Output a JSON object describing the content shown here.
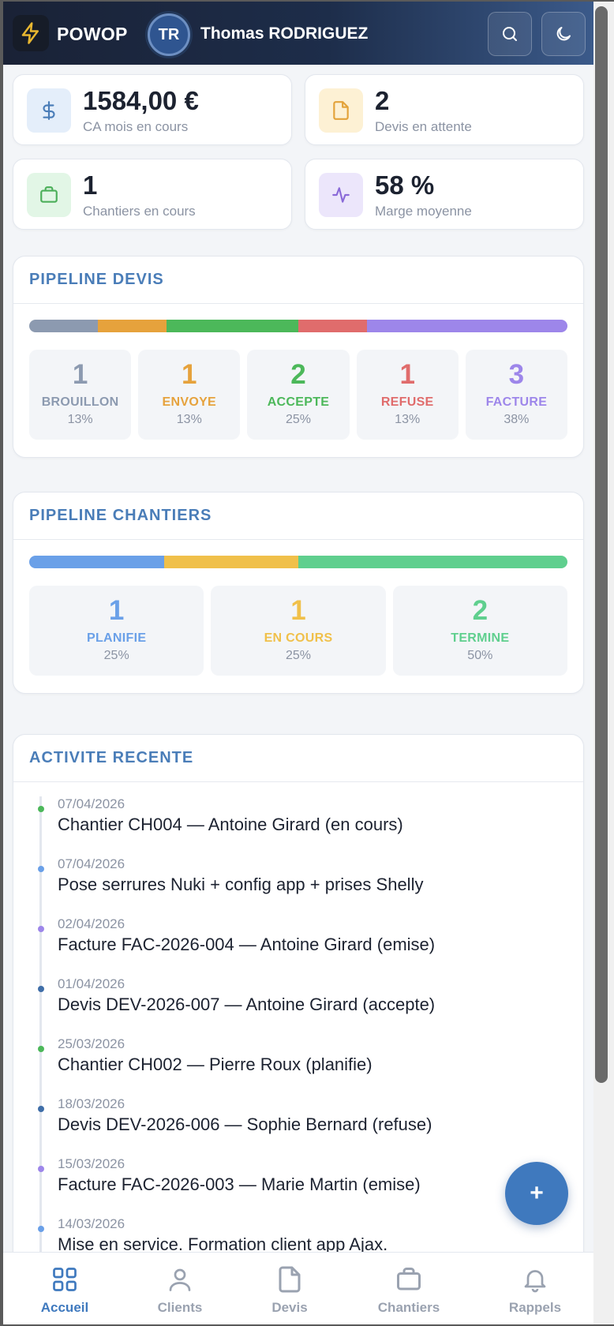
{
  "header": {
    "brand": "POWOP",
    "avatar_initials": "TR",
    "user_name": "Thomas RODRIGUEZ"
  },
  "stats": [
    {
      "value": "1584,00 €",
      "label": "CA mois en cours",
      "icon": "dollar-icon",
      "bg": "#e4eefa",
      "fg": "#4a7db8"
    },
    {
      "value": "2",
      "label": "Devis en attente",
      "icon": "document-icon",
      "bg": "#fdf1d4",
      "fg": "#e3a33a"
    },
    {
      "value": "1",
      "label": "Chantiers en cours",
      "icon": "briefcase-icon",
      "bg": "#e2f6e6",
      "fg": "#4caf5a"
    },
    {
      "value": "58 %",
      "label": "Marge moyenne",
      "icon": "activity-icon",
      "bg": "#ece6fb",
      "fg": "#8a6ad8"
    }
  ],
  "pipeline_devis": {
    "title": "PIPELINE DEVIS",
    "items": [
      {
        "count": "1",
        "label": "BROUILLON",
        "pct": "13%",
        "share": 13,
        "color": "#8c9ab0"
      },
      {
        "count": "1",
        "label": "ENVOYE",
        "pct": "13%",
        "share": 13,
        "color": "#e6a23c"
      },
      {
        "count": "2",
        "label": "ACCEPTE",
        "pct": "25%",
        "share": 25,
        "color": "#4cb85a"
      },
      {
        "count": "1",
        "label": "REFUSE",
        "pct": "13%",
        "share": 13,
        "color": "#e06c6c"
      },
      {
        "count": "3",
        "label": "FACTURE",
        "pct": "38%",
        "share": 38,
        "color": "#9d86ea"
      }
    ]
  },
  "pipeline_chantiers": {
    "title": "PIPELINE CHANTIERS",
    "items": [
      {
        "count": "1",
        "label": "PLANIFIE",
        "pct": "25%",
        "share": 25,
        "color": "#6aa0e8"
      },
      {
        "count": "1",
        "label": "EN COURS",
        "pct": "25%",
        "share": 25,
        "color": "#f0c04a"
      },
      {
        "count": "2",
        "label": "TERMINE",
        "pct": "50%",
        "share": 50,
        "color": "#5fcf8e"
      }
    ]
  },
  "activity": {
    "title": "ACTIVITE RECENTE",
    "items": [
      {
        "date": "07/04/2026",
        "text": "Chantier CH004 — Antoine Girard (en cours)",
        "color": "#4cb85a"
      },
      {
        "date": "07/04/2026",
        "text": "Pose serrures Nuki + config app + prises Shelly",
        "color": "#6aa0e8"
      },
      {
        "date": "02/04/2026",
        "text": "Facture FAC-2026-004 — Antoine Girard (emise)",
        "color": "#9d86ea"
      },
      {
        "date": "01/04/2026",
        "text": "Devis DEV-2026-007 — Antoine Girard (accepte)",
        "color": "#3f6ea8"
      },
      {
        "date": "25/03/2026",
        "text": "Chantier CH002 — Pierre Roux (planifie)",
        "color": "#4cb85a"
      },
      {
        "date": "18/03/2026",
        "text": "Devis DEV-2026-006 — Sophie Bernard (refuse)",
        "color": "#3f6ea8"
      },
      {
        "date": "15/03/2026",
        "text": "Facture FAC-2026-003 — Marie Martin (emise)",
        "color": "#9d86ea"
      },
      {
        "date": "14/03/2026",
        "text": "Mise en service. Formation client app Ajax.",
        "color": "#6aa0e8"
      }
    ]
  },
  "fab": {
    "label": "+"
  },
  "nav": [
    {
      "label": "Accueil",
      "icon": "grid-icon",
      "active": true
    },
    {
      "label": "Clients",
      "icon": "user-icon",
      "active": false
    },
    {
      "label": "Devis",
      "icon": "document-icon",
      "active": false
    },
    {
      "label": "Chantiers",
      "icon": "briefcase-icon",
      "active": false
    },
    {
      "label": "Rappels",
      "icon": "bell-icon",
      "active": false
    }
  ]
}
